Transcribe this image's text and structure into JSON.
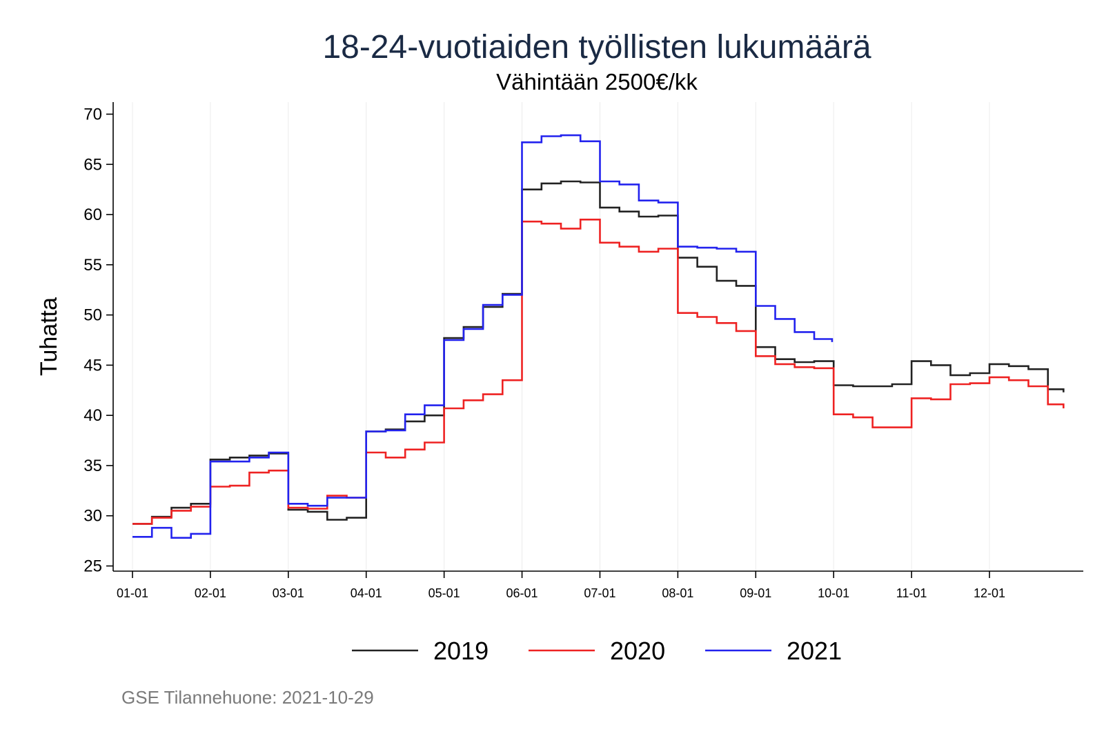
{
  "chart_data": {
    "type": "line",
    "step": true,
    "title": "18-24-vuotiaiden työllisten lukumäärä",
    "subtitle": "Vähintään 2500€/kk",
    "ylabel": "Tuhatta",
    "xlabel": "",
    "caption": "GSE Tilannehuone: 2021-10-29",
    "ylim": [
      23.5,
      70.8
    ],
    "yticks": [
      25,
      30,
      35,
      40,
      45,
      50,
      55,
      60,
      65,
      70
    ],
    "xlim": [
      -0.2,
      11.98
    ],
    "xticks": [
      0,
      1,
      2,
      3,
      4,
      5,
      6,
      7,
      8,
      9,
      10,
      11
    ],
    "xtick_labels": [
      "01-01",
      "02-01",
      "03-01",
      "04-01",
      "05-01",
      "06-01",
      "07-01",
      "08-01",
      "09-01",
      "10-01",
      "11-01",
      "12-01"
    ],
    "grid": "vertical",
    "legend_position": "bottom",
    "series": [
      {
        "name": "2019",
        "color": "#222222",
        "x": [
          0,
          0.25,
          0.5,
          0.75,
          1,
          1.25,
          1.5,
          1.75,
          2,
          2.25,
          2.5,
          2.75,
          3,
          3.25,
          3.5,
          3.75,
          4,
          4.25,
          4.5,
          4.75,
          5,
          5.25,
          5.5,
          5.75,
          6,
          6.25,
          6.5,
          6.75,
          7,
          7.25,
          7.5,
          7.75,
          8,
          8.25,
          8.5,
          8.75,
          9,
          9.25,
          9.5,
          9.75,
          10,
          10.25,
          10.5,
          10.75,
          11,
          11.25,
          11.5,
          11.75,
          11.95
        ],
        "values": [
          29.2,
          29.9,
          30.8,
          31.2,
          35.6,
          35.8,
          36.0,
          36.2,
          30.6,
          30.4,
          29.6,
          29.8,
          38.4,
          38.6,
          39.4,
          40.0,
          47.7,
          48.8,
          50.8,
          52.1,
          62.5,
          63.1,
          63.3,
          63.2,
          60.7,
          60.3,
          59.8,
          59.9,
          55.7,
          54.8,
          53.4,
          52.9,
          46.8,
          45.6,
          45.3,
          45.4,
          43.0,
          42.9,
          42.9,
          43.1,
          45.4,
          45.0,
          44.0,
          44.2,
          45.1,
          44.9,
          44.6,
          42.6,
          42.3
        ]
      },
      {
        "name": "2020",
        "color": "#ee2222",
        "x": [
          0,
          0.25,
          0.5,
          0.75,
          1,
          1.25,
          1.5,
          1.75,
          2,
          2.25,
          2.5,
          2.75,
          3,
          3.25,
          3.5,
          3.75,
          4,
          4.25,
          4.5,
          4.75,
          5,
          5.25,
          5.5,
          5.75,
          6,
          6.25,
          6.5,
          6.75,
          7,
          7.25,
          7.5,
          7.75,
          8,
          8.25,
          8.5,
          8.75,
          9,
          9.25,
          9.5,
          9.75,
          10,
          10.25,
          10.5,
          10.75,
          11,
          11.25,
          11.5,
          11.75,
          11.95
        ],
        "values": [
          29.2,
          29.8,
          30.5,
          30.9,
          32.9,
          33.0,
          34.3,
          34.5,
          30.8,
          30.7,
          32.0,
          31.8,
          36.3,
          35.8,
          36.6,
          37.3,
          40.7,
          41.5,
          42.1,
          43.5,
          59.3,
          59.1,
          58.6,
          59.5,
          57.2,
          56.8,
          56.3,
          56.6,
          50.2,
          49.8,
          49.2,
          48.4,
          45.9,
          45.1,
          44.8,
          44.7,
          40.1,
          39.8,
          38.8,
          38.8,
          41.7,
          41.6,
          43.1,
          43.2,
          43.8,
          43.5,
          42.9,
          41.1,
          40.7
        ]
      },
      {
        "name": "2021",
        "color": "#2222ee",
        "x": [
          0,
          0.25,
          0.5,
          0.75,
          1,
          1.25,
          1.5,
          1.75,
          2,
          2.25,
          2.5,
          2.75,
          3,
          3.25,
          3.5,
          3.75,
          4,
          4.25,
          4.5,
          4.75,
          5,
          5.25,
          5.5,
          5.75,
          6,
          6.25,
          6.5,
          6.75,
          7,
          7.25,
          7.5,
          7.75,
          8,
          8.25,
          8.5,
          8.75,
          8.98
        ],
        "values": [
          27.9,
          28.8,
          27.8,
          28.2,
          35.4,
          35.4,
          35.8,
          36.3,
          31.2,
          31.0,
          31.8,
          31.8,
          38.4,
          38.5,
          40.1,
          41.0,
          47.5,
          48.6,
          51.0,
          52.0,
          67.2,
          67.8,
          67.9,
          67.3,
          63.3,
          63.0,
          61.4,
          61.2,
          56.8,
          56.7,
          56.6,
          56.3,
          50.9,
          49.6,
          48.3,
          47.6,
          47.3
        ]
      }
    ]
  }
}
